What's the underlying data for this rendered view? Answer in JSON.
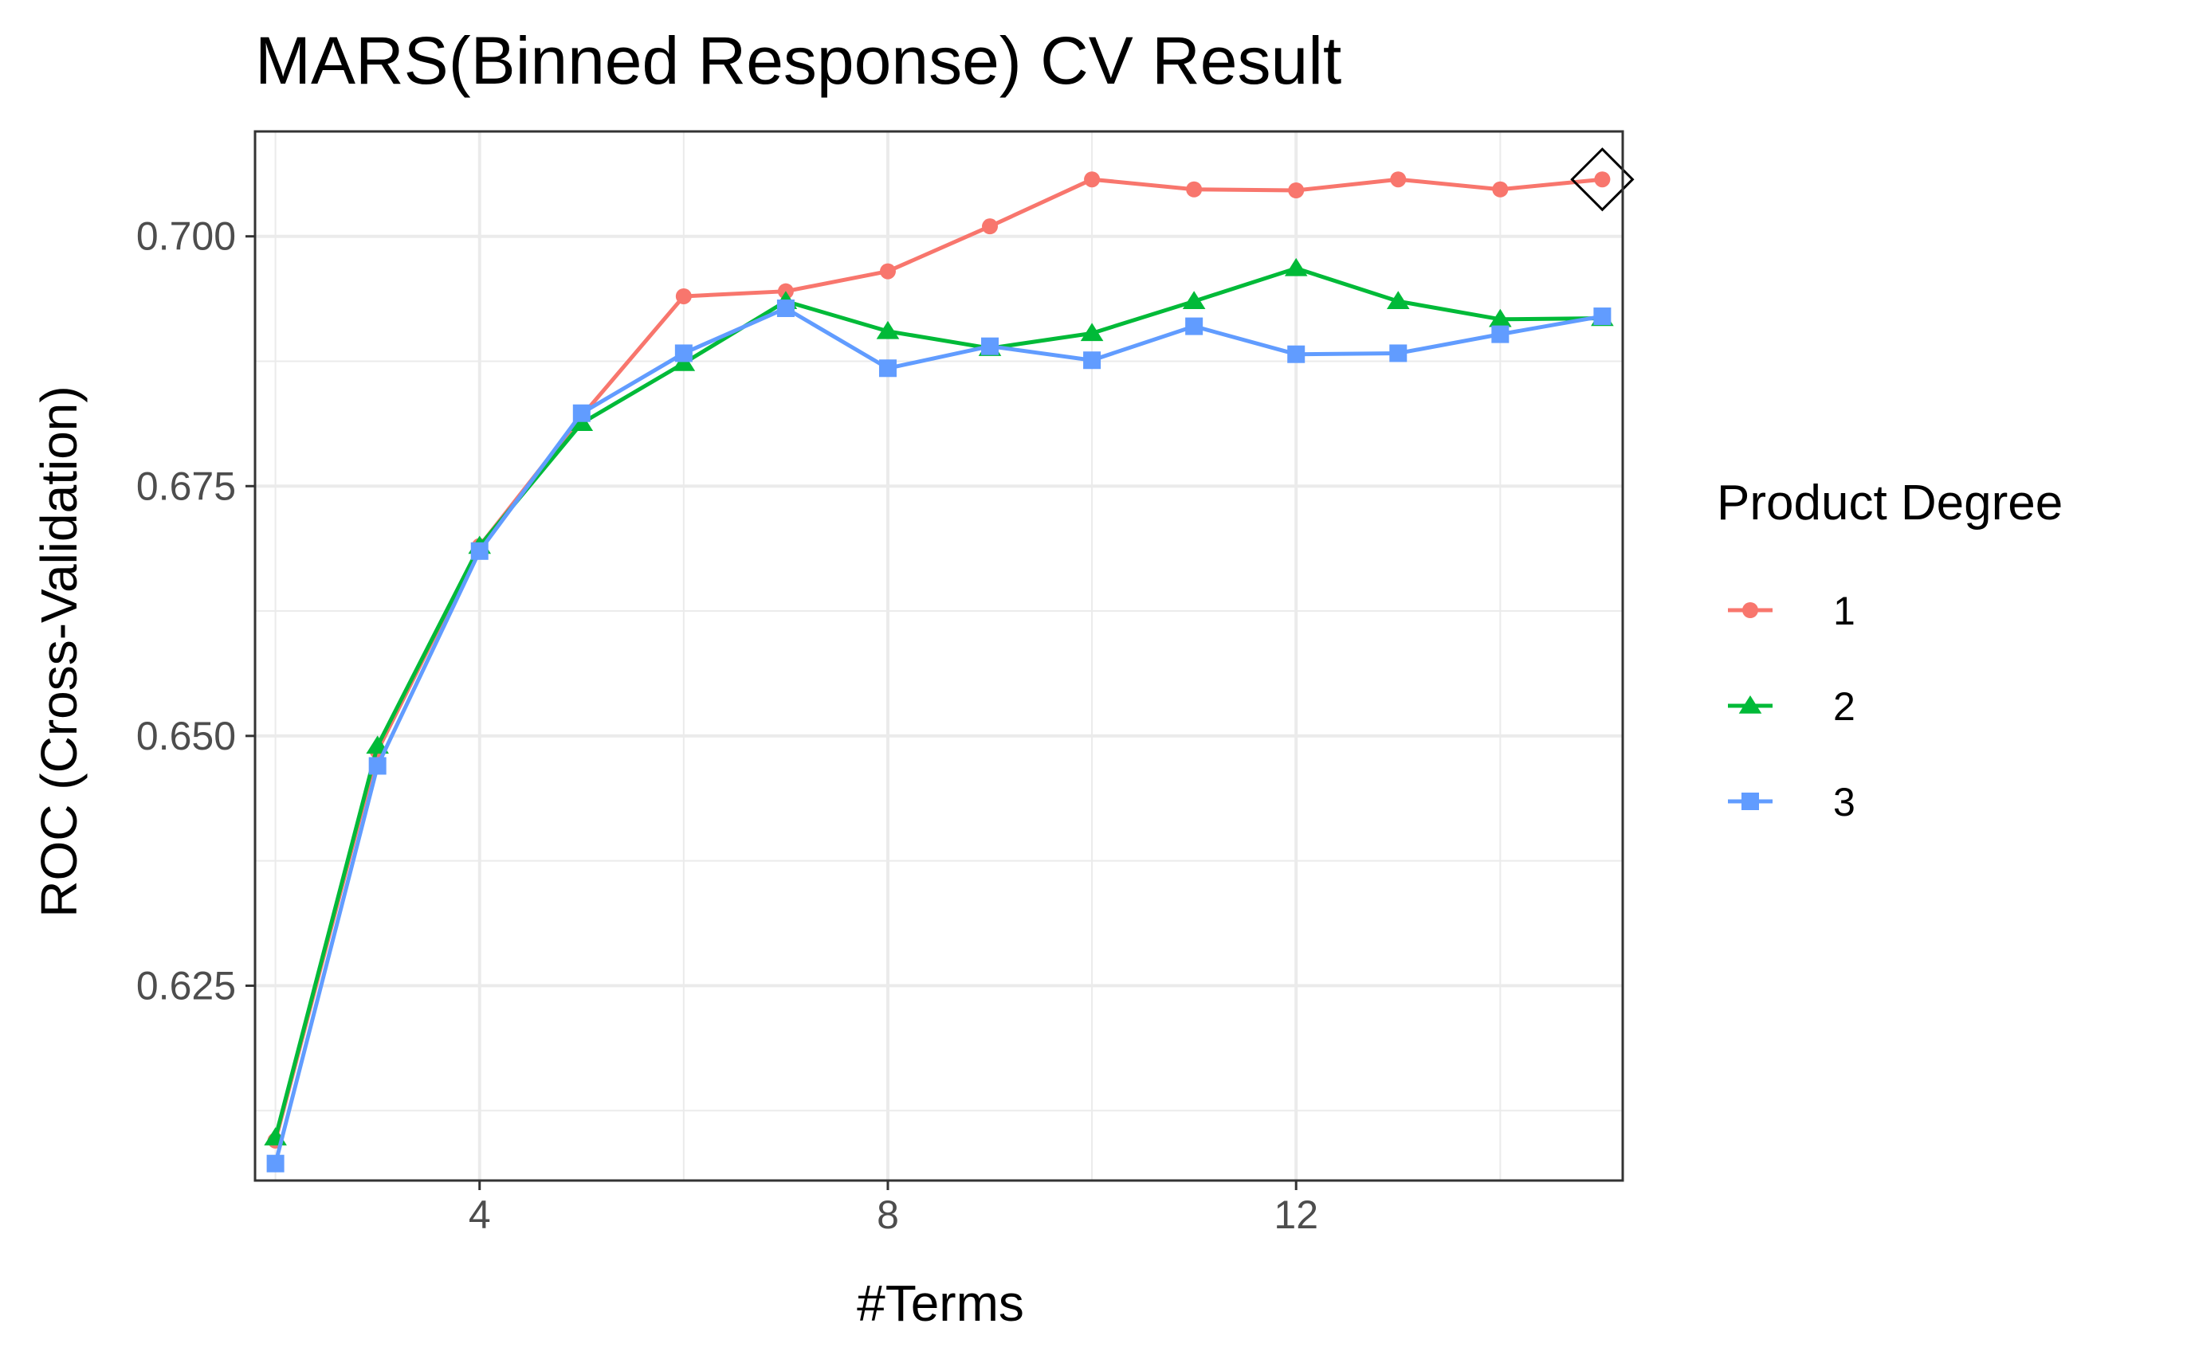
{
  "chart_data": {
    "type": "line",
    "title": "MARS(Binned Response) CV Result",
    "xlabel": "#Terms",
    "ylabel": "ROC (Cross-Validation)",
    "x": [
      2,
      3,
      4,
      5,
      6,
      7,
      8,
      9,
      10,
      11,
      12,
      13,
      14,
      15
    ],
    "xlim": [
      1.8,
      15.2
    ],
    "ylim": [
      0.6055,
      0.7105
    ],
    "x_ticks": [
      4,
      8,
      12
    ],
    "x_tick_labels": [
      "4",
      "8",
      "12"
    ],
    "y_ticks": [
      0.625,
      0.65,
      0.675,
      0.7
    ],
    "y_tick_labels": [
      "0.625",
      "0.650",
      "0.675",
      "0.700"
    ],
    "grid": true,
    "legend": {
      "title": "Product Degree",
      "position": "right"
    },
    "series": [
      {
        "name": "1",
        "color": "#F8766D",
        "marker": "circle",
        "values": [
          0.6095,
          0.6485,
          0.669,
          0.682,
          0.694,
          0.6945,
          0.6965,
          0.701,
          0.7057,
          0.7047,
          0.7046,
          0.7057,
          0.7047,
          0.7057
        ]
      },
      {
        "name": "2",
        "color": "#00BA38",
        "marker": "triangle",
        "values": [
          0.6098,
          0.649,
          0.669,
          0.6813,
          0.6873,
          0.6935,
          0.6905,
          0.6888,
          0.6903,
          0.6935,
          0.6968,
          0.6935,
          0.6917,
          0.6918
        ]
      },
      {
        "name": "3",
        "color": "#619CFF",
        "marker": "square",
        "values": [
          0.6072,
          0.647,
          0.6685,
          0.6823,
          0.6883,
          0.6928,
          0.6868,
          0.689,
          0.6876,
          0.691,
          0.6882,
          0.6883,
          0.6902,
          0.692
        ]
      }
    ],
    "best_point": {
      "x": 15,
      "y": 0.7057,
      "marker": "diamond"
    }
  }
}
